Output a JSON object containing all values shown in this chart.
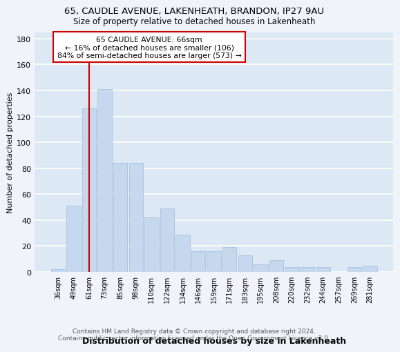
{
  "title_line1": "65, CAUDLE AVENUE, LAKENHEATH, BRANDON, IP27 9AU",
  "title_line2": "Size of property relative to detached houses in Lakenheath",
  "xlabel": "Distribution of detached houses by size in Lakenheath",
  "ylabel": "Number of detached properties",
  "footer_line1": "Contains HM Land Registry data © Crown copyright and database right 2024.",
  "footer_line2": "Contains public sector information licensed under the Open Government Licence v3.0.",
  "categories": [
    "36sqm",
    "49sqm",
    "61sqm",
    "73sqm",
    "85sqm",
    "98sqm",
    "110sqm",
    "122sqm",
    "134sqm",
    "146sqm",
    "159sqm",
    "171sqm",
    "183sqm",
    "195sqm",
    "208sqm",
    "220sqm",
    "232sqm",
    "244sqm",
    "257sqm",
    "269sqm",
    "281sqm"
  ],
  "values": [
    2,
    51,
    126,
    141,
    84,
    84,
    42,
    49,
    29,
    16,
    16,
    19,
    13,
    6,
    9,
    4,
    4,
    4,
    0,
    4,
    5
  ],
  "bar_color": "#c5d8ee",
  "bar_edge_color": "#a0bcd8",
  "background_color": "#dde8f5",
  "grid_color": "#ffffff",
  "annotation_text_line1": "65 CAUDLE AVENUE: 66sqm",
  "annotation_text_line2": "← 16% of detached houses are smaller (106)",
  "annotation_text_line3": "84% of semi-detached houses are larger (573) →",
  "vline_color": "#cc0000",
  "vline_x": 2.0,
  "ylim": [
    0,
    185
  ],
  "yticks": [
    0,
    20,
    40,
    60,
    80,
    100,
    120,
    140,
    160,
    180
  ],
  "fig_bg": "#f0f4fa",
  "title_fontsize": 9.5,
  "subtitle_fontsize": 8.5,
  "ylabel_fontsize": 8,
  "xlabel_fontsize": 9,
  "tick_fontsize": 7,
  "footer_fontsize": 6.5
}
